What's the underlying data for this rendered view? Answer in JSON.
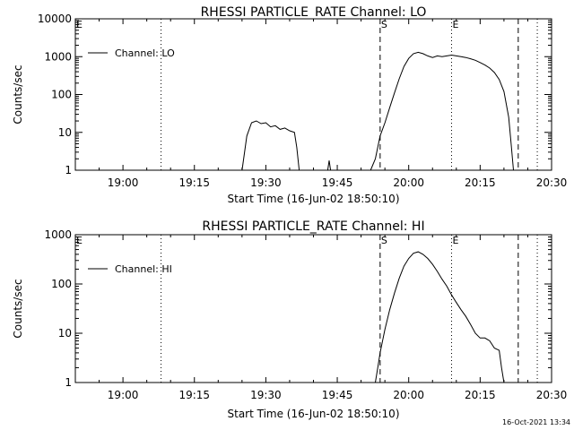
{
  "footer": {
    "timestamp": "16-Oct-2021 13:34"
  },
  "chart_data": [
    {
      "type": "line",
      "title": "RHESSI PARTICLE_RATE Channel: LO",
      "xlabel": "Start Time (16-Jun-02 18:50:10)",
      "ylabel": "Counts/sec",
      "ylog": true,
      "xlim": [
        "18:50",
        "20:30"
      ],
      "ylim": [
        1,
        10000
      ],
      "xticks": [
        "19:00",
        "19:15",
        "19:30",
        "19:45",
        "20:00",
        "20:15",
        "20:30"
      ],
      "yticks": [
        {
          "value": 1,
          "label": "1"
        },
        {
          "value": 10,
          "label": "10"
        },
        {
          "value": 100,
          "label": "100"
        },
        {
          "value": 1000,
          "label": "1000"
        },
        {
          "value": 10000,
          "label": "10000"
        }
      ],
      "legend": {
        "label": "Channel: LO",
        "position": "top-left"
      },
      "markers": [
        {
          "time": "18:50",
          "label": "E",
          "style": "none"
        },
        {
          "time": "19:08",
          "label": "",
          "style": "dotted"
        },
        {
          "time": "19:54",
          "label": "S",
          "style": "dashed"
        },
        {
          "time": "20:09",
          "label": "E",
          "style": "dotted"
        },
        {
          "time": "20:23",
          "label": "",
          "style": "dashed"
        },
        {
          "time": "20:27",
          "label": "",
          "style": "dotted"
        }
      ],
      "series": [
        {
          "segments": [
            [
              [
                "19:25",
                1
              ],
              [
                "19:26",
                8
              ],
              [
                "19:27",
                18
              ],
              [
                "19:28",
                20
              ],
              [
                "19:29",
                17
              ],
              [
                "19:30",
                18
              ],
              [
                "19:31",
                14
              ],
              [
                "19:32",
                15
              ],
              [
                "19:33",
                12
              ],
              [
                "19:34",
                13
              ],
              [
                "19:35",
                11
              ],
              [
                "19:36",
                10
              ],
              [
                "19:36.5",
                4
              ],
              [
                "19:37",
                1
              ]
            ],
            [
              [
                "19:43",
                1
              ],
              [
                "19:43.3",
                1.8
              ],
              [
                "19:43.6",
                1
              ]
            ],
            [
              [
                "19:52",
                1
              ],
              [
                "19:53",
                2
              ],
              [
                "19:54",
                8
              ],
              [
                "19:55",
                18
              ],
              [
                "19:56",
                45
              ],
              [
                "19:57",
                110
              ],
              [
                "19:58",
                260
              ],
              [
                "19:59",
                550
              ],
              [
                "20:00",
                900
              ],
              [
                "20:01",
                1200
              ],
              [
                "20:02",
                1300
              ],
              [
                "20:03",
                1200
              ],
              [
                "20:04",
                1050
              ],
              [
                "20:05",
                950
              ],
              [
                "20:06",
                1050
              ],
              [
                "20:07",
                1000
              ],
              [
                "20:08",
                1050
              ],
              [
                "20:09",
                1100
              ],
              [
                "20:10",
                1050
              ],
              [
                "20:11",
                1000
              ],
              [
                "20:12",
                950
              ],
              [
                "20:13",
                880
              ],
              [
                "20:14",
                800
              ],
              [
                "20:15",
                700
              ],
              [
                "20:16",
                600
              ],
              [
                "20:17",
                500
              ],
              [
                "20:18",
                380
              ],
              [
                "20:19",
                250
              ],
              [
                "20:20",
                120
              ],
              [
                "20:21",
                25
              ],
              [
                "20:21.5",
                5
              ],
              [
                "20:22",
                1
              ]
            ]
          ]
        }
      ]
    },
    {
      "type": "line",
      "title": "RHESSI PARTICLE_RATE Channel: HI",
      "xlabel": "Start Time (16-Jun-02 18:50:10)",
      "ylabel": "Counts/sec",
      "ylog": true,
      "xlim": [
        "18:50",
        "20:30"
      ],
      "ylim": [
        1,
        1000
      ],
      "xticks": [
        "19:00",
        "19:15",
        "19:30",
        "19:45",
        "20:00",
        "20:15",
        "20:30"
      ],
      "yticks": [
        {
          "value": 1,
          "label": "1"
        },
        {
          "value": 10,
          "label": "10"
        },
        {
          "value": 100,
          "label": "100"
        },
        {
          "value": 1000,
          "label": "1000"
        }
      ],
      "legend": {
        "label": "Channel: HI",
        "position": "top-left"
      },
      "markers": [
        {
          "time": "18:50",
          "label": "E",
          "style": "none"
        },
        {
          "time": "19:08",
          "label": "",
          "style": "dotted"
        },
        {
          "time": "19:54",
          "label": "S",
          "style": "dashed"
        },
        {
          "time": "20:09",
          "label": "E",
          "style": "dotted"
        },
        {
          "time": "20:23",
          "label": "",
          "style": "dashed"
        },
        {
          "time": "20:27",
          "label": "",
          "style": "dotted"
        }
      ],
      "series": [
        {
          "segments": [
            [
              [
                "19:53",
                1
              ],
              [
                "19:53.5",
                2
              ],
              [
                "19:54",
                4
              ],
              [
                "19:55",
                12
              ],
              [
                "19:56",
                30
              ],
              [
                "19:57",
                65
              ],
              [
                "19:58",
                130
              ],
              [
                "19:59",
                230
              ],
              [
                "20:00",
                330
              ],
              [
                "20:01",
                420
              ],
              [
                "20:02",
                450
              ],
              [
                "20:03",
                400
              ],
              [
                "20:04",
                330
              ],
              [
                "20:05",
                250
              ],
              [
                "20:06",
                180
              ],
              [
                "20:07",
                125
              ],
              [
                "20:08",
                90
              ],
              [
                "20:09",
                60
              ],
              [
                "20:10",
                42
              ],
              [
                "20:11",
                30
              ],
              [
                "20:12",
                22
              ],
              [
                "20:13",
                15
              ],
              [
                "20:14",
                10
              ],
              [
                "20:15",
                8
              ],
              [
                "20:16",
                8
              ],
              [
                "20:17",
                7
              ],
              [
                "20:18",
                5
              ],
              [
                "20:19",
                4.5
              ],
              [
                "20:19.5",
                2
              ],
              [
                "20:20",
                1
              ]
            ]
          ]
        }
      ]
    }
  ]
}
